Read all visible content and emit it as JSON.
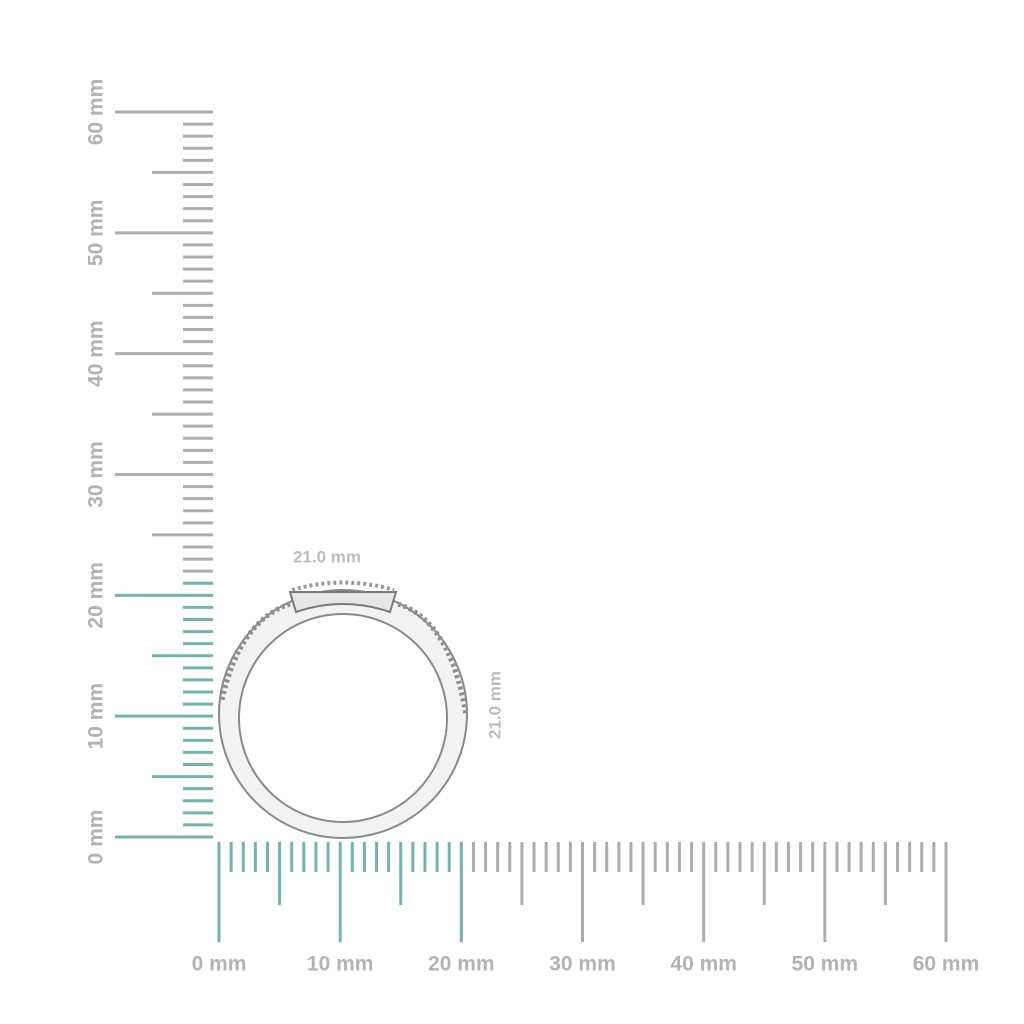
{
  "rulers": {
    "horizontal": [
      "0 mm",
      "10 mm",
      "20 mm",
      "30 mm",
      "40 mm",
      "50 mm",
      "60 mm"
    ],
    "vertical": [
      "0 mm",
      "10 mm",
      "20 mm",
      "30 mm",
      "40 mm",
      "50 mm",
      "60 mm"
    ]
  },
  "dimensions": {
    "width": "21.0 mm",
    "height": "21.0 mm"
  }
}
